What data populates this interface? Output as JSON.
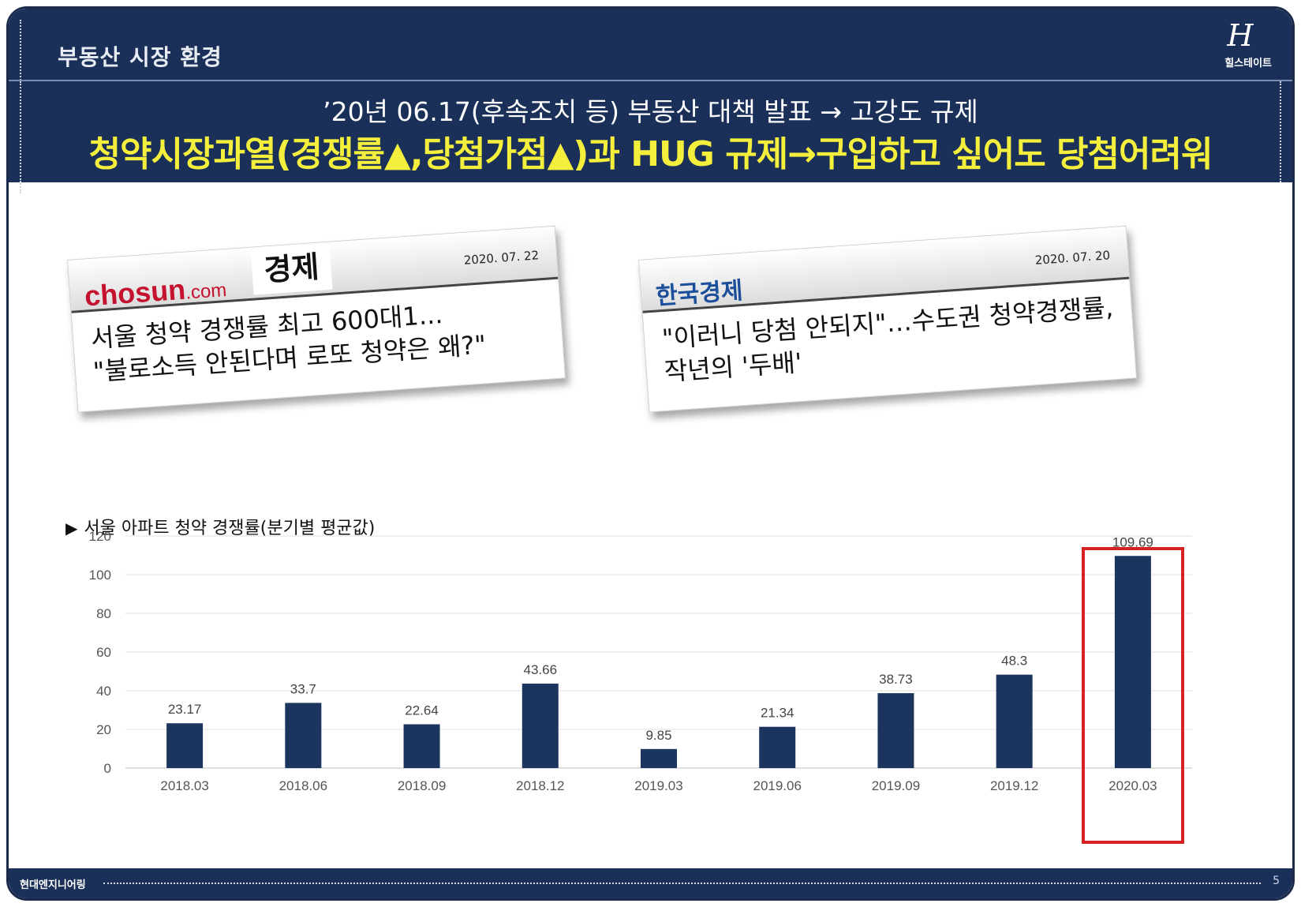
{
  "header": {
    "section_title": "부동산 시장 환경",
    "logo_mark": "H",
    "logo_text": "힐스테이트"
  },
  "headline": {
    "line1": "’20년 06.17(후속조치 등) 부동산 대책 발표 → 고강도 규제",
    "line2": "청약시장과열(경쟁률▲,당첨가점▲)과 HUG 규제→구입하고 싶어도 당첨어려워"
  },
  "clippings": [
    {
      "source_logo": "chosun",
      "source_logo_com": ".com",
      "section": "경제",
      "date": "2020. 07. 22",
      "headline_lines": [
        "서울 청약 경쟁률 최고 600대1...",
        "\"불로소득 안된다며 로또 청약은 왜?\""
      ]
    },
    {
      "source_logo": "한국경제",
      "date": "2020. 07. 20",
      "headline_lines": [
        "\"이러니 당첨 안되지\"…수도권 청약경쟁률,",
        "작년의 '두배'"
      ]
    }
  ],
  "chart_title_marker": "▶",
  "chart_title": "서울 아파트 청약 경쟁률(분기별 평균값)",
  "chart_data": {
    "type": "bar",
    "title": "서울 아파트 청약 경쟁률(분기별 평균값)",
    "categories": [
      "2018.03",
      "2018.06",
      "2018.09",
      "2018.12",
      "2019.03",
      "2019.06",
      "2019.09",
      "2019.12",
      "2020.03"
    ],
    "values": [
      23.17,
      33.7,
      22.64,
      43.66,
      9.85,
      21.34,
      38.73,
      48.3,
      109.69
    ],
    "value_labels": [
      "23.17",
      "33.7",
      "22.64",
      "43.66",
      "9.85",
      "21.34",
      "38.73",
      "48.3",
      "109.69"
    ],
    "yticks": [
      "0",
      "20",
      "40",
      "60",
      "80",
      "100",
      "120"
    ],
    "ylim": [
      0,
      120
    ],
    "grid": true,
    "highlighted_category": "2020.03",
    "bar_color": "#1b355e",
    "highlight_color": "#d62125"
  },
  "footer": {
    "company": "현대엔지니어링",
    "page": "5"
  }
}
